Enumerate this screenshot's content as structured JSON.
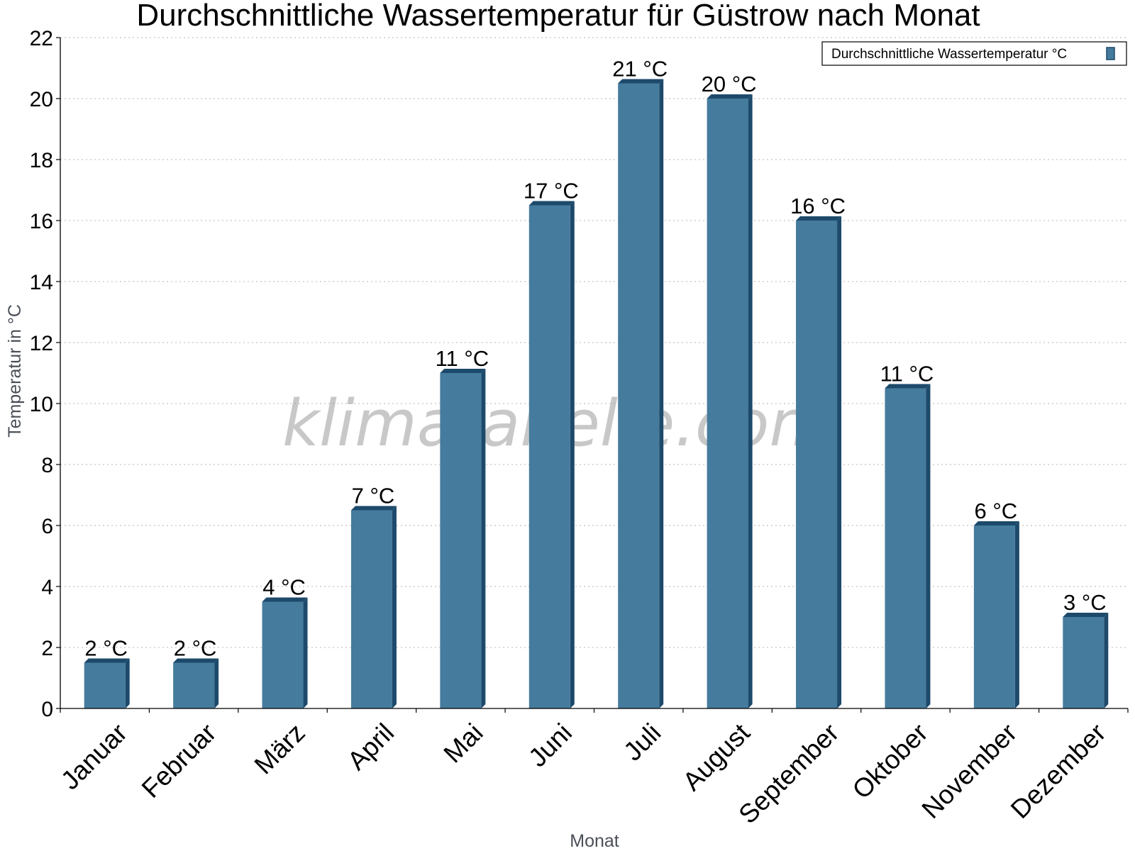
{
  "chart_data": {
    "type": "bar",
    "title": "Durchschnittliche Wassertemperatur für Güstrow nach Monat",
    "xlabel": "Monat",
    "ylabel": "Temperatur in °C",
    "ylim": [
      0,
      22
    ],
    "yticks": [
      "0",
      "2",
      "4",
      "6",
      "8",
      "10",
      "12",
      "14",
      "16",
      "18",
      "20",
      "22"
    ],
    "grid": true,
    "legend_position": "top-right",
    "categories": [
      "Januar",
      "Februar",
      "März",
      "April",
      "Mai",
      "Juni",
      "Juli",
      "August",
      "September",
      "Oktober",
      "November",
      "Dezember"
    ],
    "series": [
      {
        "name": "Durchschnittliche Wassertemperatur °C",
        "values": [
          1.5,
          1.5,
          3.5,
          6.5,
          11.0,
          16.5,
          20.5,
          20.0,
          16.0,
          10.5,
          6.0,
          3.0
        ],
        "labels": [
          "2 °C",
          "2 °C",
          "4 °C",
          "7 °C",
          "11 °C",
          "17 °C",
          "21 °C",
          "20 °C",
          "16 °C",
          "11 °C",
          "6 °C",
          "3 °C"
        ],
        "color": "#457b9d",
        "side_color": "#1d4a6b"
      }
    ],
    "watermark": "klimatabelle.com"
  }
}
